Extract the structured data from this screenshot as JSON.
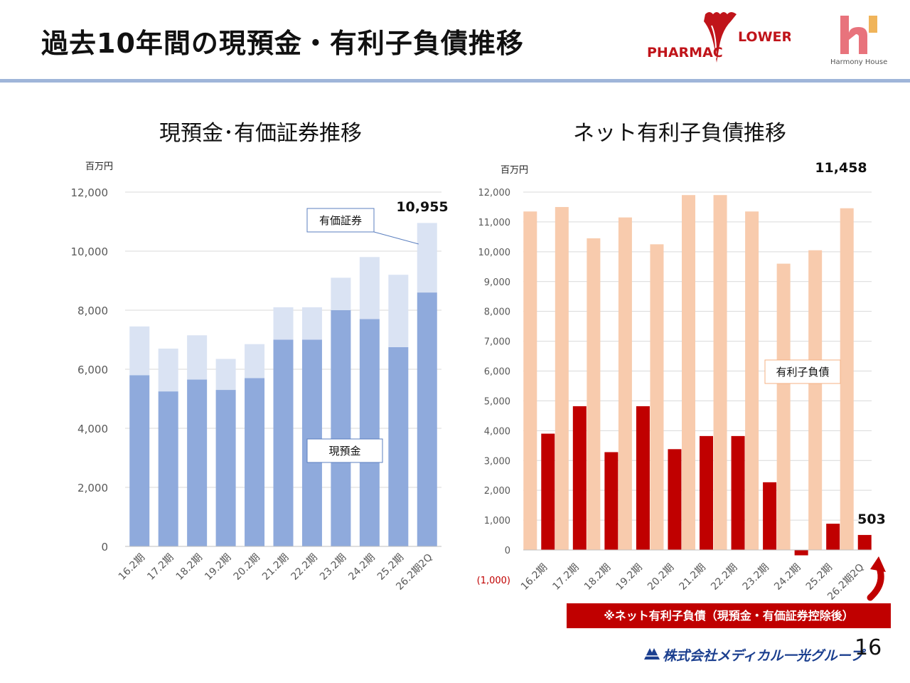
{
  "header": {
    "title": "過去10年間の現預金・有利子負債推移",
    "logo_pharma_left": "PHARMAC",
    "logo_pharma_right": "LOWER",
    "logo_harmony": "Harmony House"
  },
  "footer": {
    "company": "株式会社メディカル一光グループ",
    "page_number": "16"
  },
  "colors": {
    "cash": "#8faadc",
    "securities": "#dae3f3",
    "debt": "#f8cbad",
    "net_debt": "#c00000",
    "header_rule": "#9fb5d9"
  },
  "chart_data": [
    {
      "type": "bar",
      "stacked": true,
      "title": "現預金･有価証券推移",
      "unit": "百万円",
      "categories": [
        "16.2期",
        "17.2期",
        "18.2期",
        "19.2期",
        "20.2期",
        "21.2期",
        "22.2期",
        "23.2期",
        "24.2期",
        "25.2期",
        "26.2期2Q"
      ],
      "series": [
        {
          "name": "現預金",
          "values": [
            5800,
            5250,
            5650,
            5300,
            5700,
            7000,
            7000,
            8000,
            7700,
            6750,
            8600
          ]
        },
        {
          "name": "有価証券",
          "values": [
            1650,
            1450,
            1500,
            1050,
            1150,
            1100,
            1100,
            1100,
            2100,
            2450,
            2355
          ]
        }
      ],
      "ylim": [
        0,
        12000
      ],
      "yticks": [
        "0",
        "2,000",
        "4,000",
        "6,000",
        "8,000",
        "10,000",
        "12,000"
      ],
      "grid": true,
      "highlight_label": "10,955"
    },
    {
      "type": "bar",
      "title": "ネット有利子負債推移",
      "unit": "百万円",
      "categories": [
        "16.2期",
        "17.2期",
        "18.2期",
        "19.2期",
        "20.2期",
        "21.2期",
        "22.2期",
        "23.2期",
        "24.2期",
        "25.2期",
        "26.2期2Q"
      ],
      "series": [
        {
          "name": "有利子負債",
          "values": [
            11350,
            11500,
            10450,
            11150,
            10250,
            11900,
            11900,
            11350,
            9600,
            10050,
            11458
          ]
        },
        {
          "name": "ネット有利子負債",
          "values": [
            3900,
            4820,
            3280,
            4820,
            3380,
            3820,
            3820,
            2270,
            -180,
            880,
            503
          ]
        }
      ],
      "ylim": [
        -1000,
        12000
      ],
      "yticks": [
        "12,000",
        "11,000",
        "10,000",
        "9,000",
        "8,000",
        "7,000",
        "6,000",
        "5,000",
        "4,000",
        "3,000",
        "2,000",
        "1,000",
        "0",
        "(1,000)"
      ],
      "grid": true,
      "highlight_label_top": "11,458",
      "highlight_label_net": "503",
      "note": "※ネット有利子負債（現預金・有価証券控除後）"
    }
  ]
}
